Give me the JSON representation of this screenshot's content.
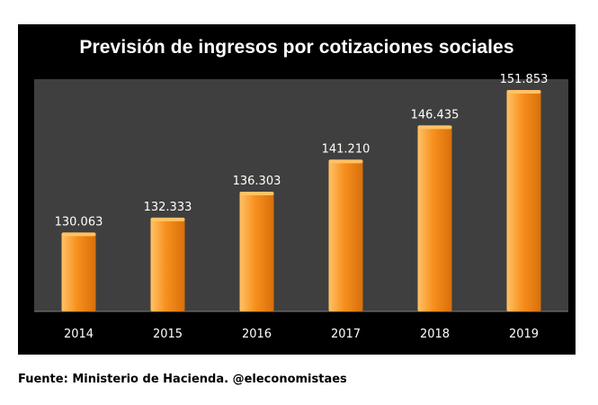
{
  "chart_data": {
    "type": "bar",
    "title": "Previsión de ingresos por cotizaciones sociales",
    "categories": [
      "2014",
      "2015",
      "2016",
      "2017",
      "2018",
      "2019"
    ],
    "values": [
      130063,
      132333,
      136303,
      141210,
      146435,
      151853
    ],
    "data_labels": [
      "130.063",
      "132.333",
      "136.303",
      "141.210",
      "146.435",
      "151.853"
    ],
    "xlabel": "",
    "ylabel": "",
    "ylim": [
      118000,
      153500
    ],
    "grid": false,
    "legend": "none",
    "colors": {
      "background": "#000000",
      "plot_area": "#3f3f3f",
      "bar_light": "#ffc266",
      "bar_mid": "#f7901e",
      "bar_dark": "#d86f0a",
      "text": "#ffffff"
    }
  },
  "footer": {
    "source": "Fuente: Ministerio de Hacienda. @eleconomistaes"
  }
}
